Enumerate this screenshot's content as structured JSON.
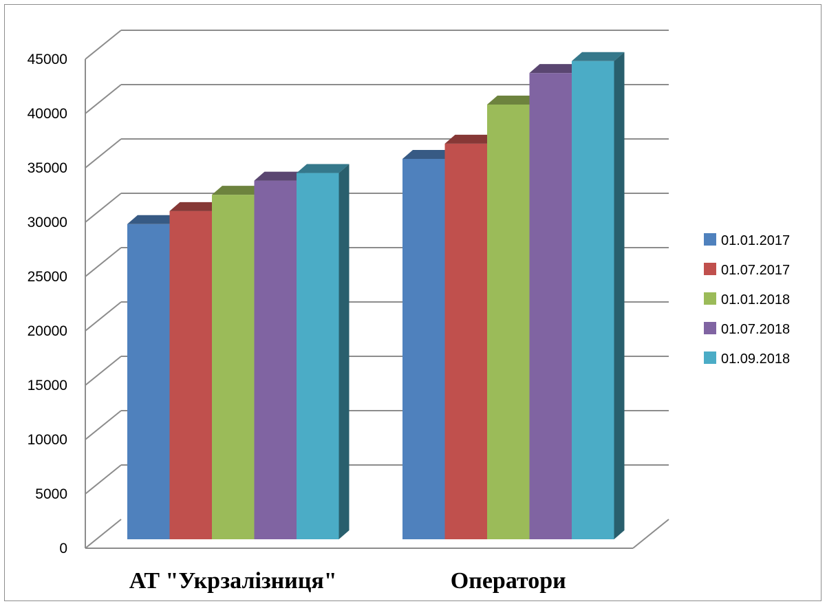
{
  "chart_data": {
    "type": "bar",
    "style": "3d-clustered-column",
    "categories": [
      "АТ \"Укрзалізниця\"",
      "Оператори"
    ],
    "series": [
      {
        "name": "01.01.2017",
        "color": "#4F81BD",
        "values": [
          29000,
          35000
        ]
      },
      {
        "name": "01.07.2017",
        "color": "#C0504D",
        "values": [
          30200,
          36400
        ]
      },
      {
        "name": "01.01.2018",
        "color": "#9BBB59",
        "values": [
          31700,
          40000
        ]
      },
      {
        "name": "01.07.2018",
        "color": "#8064A2",
        "values": [
          33000,
          42900
        ]
      },
      {
        "name": "01.09.2018",
        "color": "#4BACC6",
        "values": [
          33700,
          44000
        ]
      }
    ],
    "ylim": [
      0,
      45000
    ],
    "yticks": [
      "0",
      "5000",
      "10000",
      "15000",
      "20000",
      "25000",
      "30000",
      "35000",
      "40000",
      "45000"
    ],
    "grid": true,
    "legend": "right"
  }
}
